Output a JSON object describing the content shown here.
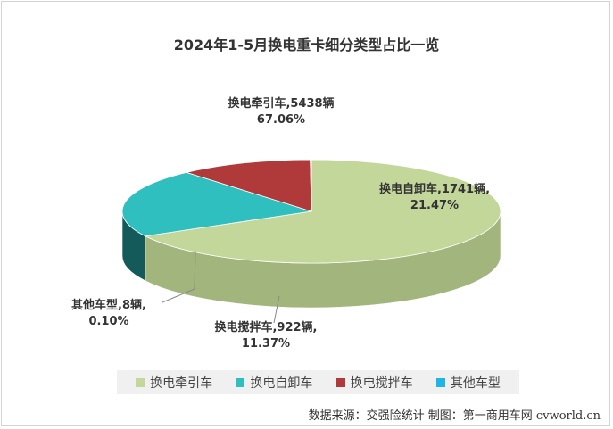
{
  "chart_data": {
    "type": "pie",
    "title": "2024年1-5月换电重卡细分类型占比一览",
    "slices": [
      {
        "name": "换电牵引车",
        "count": 5438,
        "value": 67.06,
        "label_line1": "换电牵引车,5438辆",
        "label_line2": "67.06%",
        "color": "#c4d79b",
        "side_color": "#a2b57c"
      },
      {
        "name": "换电自卸车",
        "count": 1741,
        "value": 21.47,
        "label_line1": "换电自卸车,1741辆,",
        "label_line2": "21.47%",
        "color": "#2fbfbf",
        "side_color": "#155a5a"
      },
      {
        "name": "换电搅拌车",
        "count": 922,
        "value": 11.37,
        "label_line1": "换电搅拌车,922辆,",
        "label_line2": "11.37%",
        "color": "#b03a3a",
        "side_color": "#6e2424"
      },
      {
        "name": "其他车型",
        "count": 8,
        "value": 0.1,
        "label_line1": "其他车型,8辆,",
        "label_line2": "0.10%",
        "color": "#1fb5e5",
        "side_color": "#1585a8"
      }
    ],
    "legend_position": "bottom"
  },
  "legend": [
    "换电牵引车",
    "换电自卸车",
    "换电搅拌车",
    "其他车型"
  ],
  "source": "数据来源：交强险统计  制图：第一商用车网 cvworld.cn"
}
